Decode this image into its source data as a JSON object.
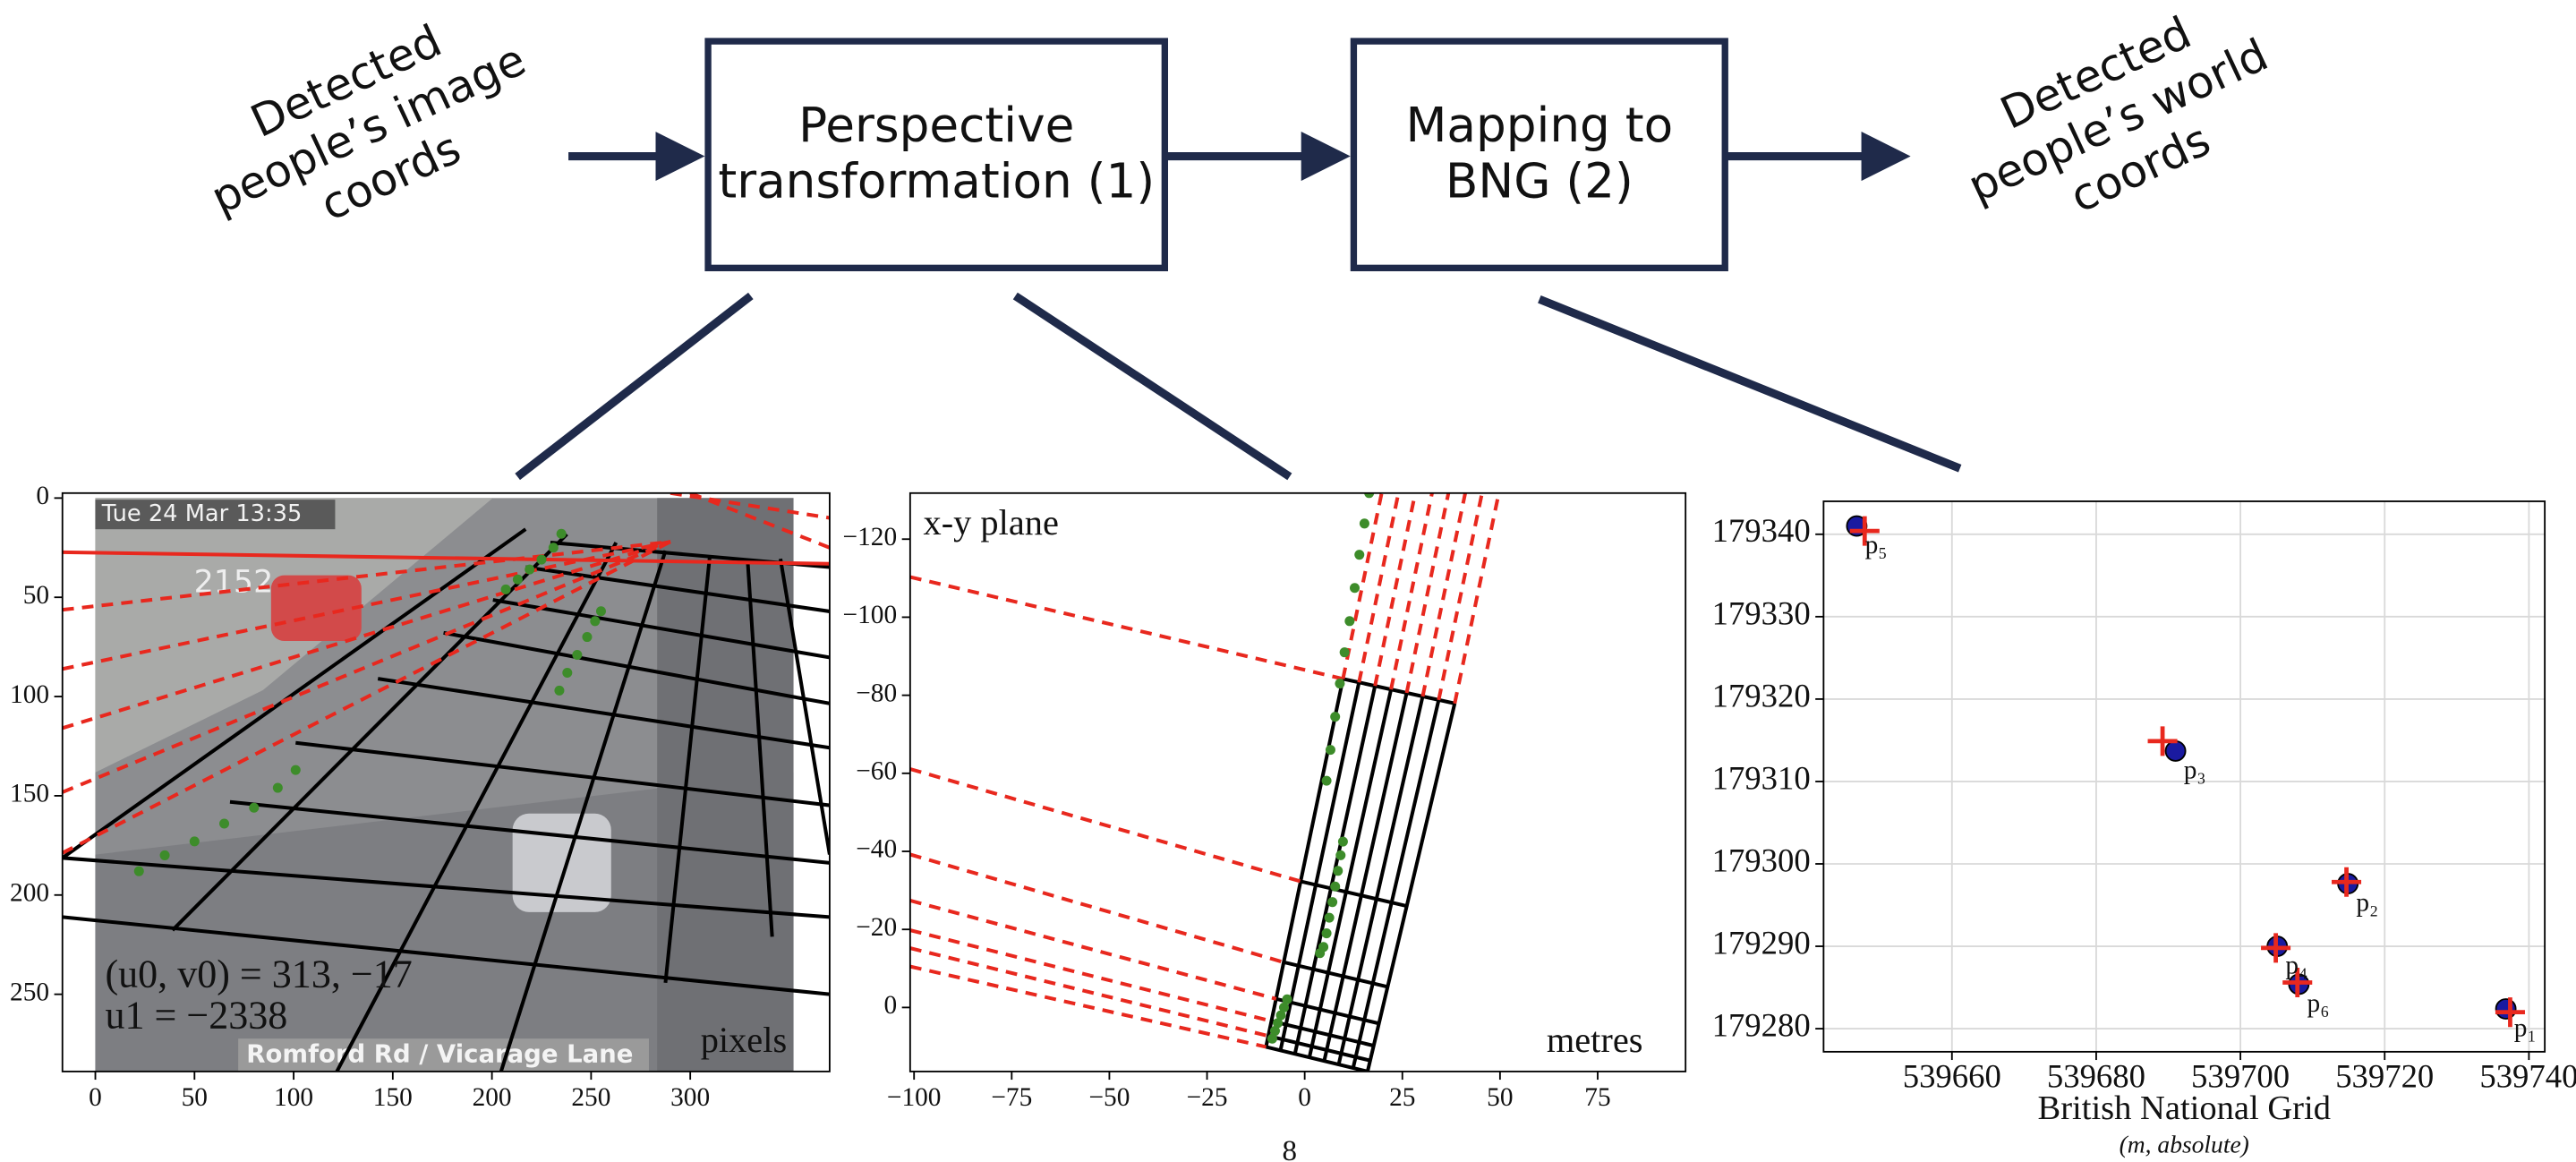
{
  "diagram": {
    "input_label": [
      "Detected",
      "people’s image",
      "coords"
    ],
    "boxes": [
      [
        "Perspective",
        "transformation (1)"
      ],
      [
        "Mapping to",
        "BNG (2)"
      ]
    ],
    "output_label": [
      "Detected",
      "people’s world",
      "coords"
    ],
    "page_number": "8"
  },
  "chart_data": [
    {
      "type": "scatter",
      "xlim": [
        -16.6,
        370.3
      ],
      "ylim": [
        288.9,
        -2.5
      ],
      "xticks": [
        0,
        50,
        100,
        150,
        200,
        250,
        300
      ],
      "yticks": [
        0,
        50,
        100,
        150,
        200,
        250
      ],
      "image_texts": [
        "Tue 24 Mar 13:35",
        "2152",
        "Romford Rd / Vicarage Lane"
      ],
      "annotations": [
        "(u0, v0) = 313, −17",
        "u1 = −2338"
      ],
      "corner_label": "pixels",
      "lines": [
        {
          "color": "#000000",
          "style": "solid",
          "x": [
            -16.6,
            217
          ],
          "y": [
            181.3,
            15.7
          ]
        },
        {
          "color": "#000000",
          "style": "solid",
          "x": [
            38.9,
            237.8
          ],
          "y": [
            217.7,
            18.2
          ]
        },
        {
          "color": "#000000",
          "style": "solid",
          "x": [
            121.8,
            262.6
          ],
          "y": [
            288.9,
            22.4
          ]
        },
        {
          "color": "#000000",
          "style": "solid",
          "x": [
            204.6,
            287.5
          ],
          "y": [
            288.9,
            26.5
          ]
        },
        {
          "color": "#000000",
          "style": "solid",
          "x": [
            287.5,
            309.9
          ],
          "y": [
            244.2,
            29
          ]
        },
        {
          "color": "#000000",
          "style": "solid",
          "x": [
            341.3,
            328.9
          ],
          "y": [
            221,
            30.6
          ]
        },
        {
          "color": "#000000",
          "style": "solid",
          "x": [
            370.3,
            345.5
          ],
          "y": [
            179.6,
            30.6
          ]
        },
        {
          "color": "#000000",
          "style": "solid",
          "x": [
            -16.6,
            370.3
          ],
          "y": [
            211.1,
            250
          ]
        },
        {
          "color": "#000000",
          "style": "solid",
          "x": [
            -16.6,
            370.3
          ],
          "y": [
            181.3,
            211.1
          ]
        },
        {
          "color": "#000000",
          "style": "solid",
          "x": [
            67.9,
            370.3
          ],
          "y": [
            153.1,
            183.8
          ]
        },
        {
          "color": "#000000",
          "style": "solid",
          "x": [
            101,
            370.3
          ],
          "y": [
            123.3,
            154.8
          ]
        },
        {
          "color": "#000000",
          "style": "solid",
          "x": [
            142.5,
            370.3
          ],
          "y": [
            91,
            125.8
          ]
        },
        {
          "color": "#000000",
          "style": "solid",
          "x": [
            175.6,
            370.3
          ],
          "y": [
            67.9,
            103.5
          ]
        },
        {
          "color": "#000000",
          "style": "solid",
          "x": [
            200.5,
            370.3
          ],
          "y": [
            51.3,
            80.3
          ]
        },
        {
          "color": "#000000",
          "style": "solid",
          "x": [
            217,
            370.3
          ],
          "y": [
            34.8,
            57.1
          ]
        },
        {
          "color": "#000000",
          "style": "solid",
          "x": [
            229.5,
            370.3
          ],
          "y": [
            22.4,
            34.8
          ]
        },
        {
          "color": "#e8281e",
          "style": "solid",
          "x": [
            -16.6,
            370.3
          ],
          "y": [
            27.3,
            33.1
          ]
        },
        {
          "color": "#e8281e",
          "style": "dashed",
          "x": [
            -16.6,
            290
          ],
          "y": [
            56.3,
            22
          ]
        },
        {
          "color": "#e8281e",
          "style": "dashed",
          "x": [
            -16.6,
            290
          ],
          "y": [
            86.1,
            22
          ]
        },
        {
          "color": "#e8281e",
          "style": "dashed",
          "x": [
            -16.6,
            290
          ],
          "y": [
            115.9,
            22
          ]
        },
        {
          "color": "#e8281e",
          "style": "dashed",
          "x": [
            -16.6,
            290
          ],
          "y": [
            148.2,
            22
          ]
        },
        {
          "color": "#e8281e",
          "style": "dashed",
          "x": [
            -16.6,
            290
          ],
          "y": [
            178.8,
            22
          ]
        },
        {
          "color": "#e8281e",
          "style": "dashed",
          "x": [
            290,
            370.3
          ],
          "y": [
            -2.5,
            10
          ]
        },
        {
          "color": "#e8281e",
          "style": "dashed",
          "x": [
            300,
            370.3
          ],
          "y": [
            -2.5,
            25
          ]
        }
      ],
      "series": [
        {
          "color": "#3d8c2a",
          "marker": "dot",
          "x": [
            22,
            35,
            50,
            65,
            80,
            92,
            101
          ],
          "y": [
            188,
            180,
            173,
            164,
            156,
            146,
            137
          ]
        },
        {
          "color": "#3d8c2a",
          "marker": "dot",
          "x": [
            207,
            213,
            219,
            225,
            231,
            235
          ],
          "y": [
            46,
            41,
            36,
            31,
            25,
            18
          ]
        },
        {
          "color": "#3d8c2a",
          "marker": "dot",
          "x": [
            234,
            238,
            243,
            248,
            252,
            255
          ],
          "y": [
            97,
            88,
            79,
            70,
            62,
            57
          ]
        }
      ]
    },
    {
      "type": "scatter",
      "xlim": [
        -101,
        97.5
      ],
      "ylim": [
        16.4,
        -131.8
      ],
      "xticks": [
        {
          "value": -100,
          "label": "−100"
        },
        {
          "value": -75,
          "label": "−75"
        },
        {
          "value": -50,
          "label": "−50"
        },
        {
          "value": -25,
          "label": "−25"
        },
        0,
        25,
        50,
        75
      ],
      "yticks": [
        {
          "value": -120,
          "label": "−120"
        },
        {
          "value": -100,
          "label": "−100"
        },
        {
          "value": -80,
          "label": "−80"
        },
        {
          "value": -60,
          "label": "−60"
        },
        {
          "value": -40,
          "label": "−40"
        },
        {
          "value": -20,
          "label": "−20"
        },
        0
      ],
      "corner_title": "x-y plane",
      "corner_label": "metres",
      "lines": [
        {
          "color": "#000000",
          "style": "solid",
          "x": [
            9.8,
            38.4
          ],
          "y": [
            -84.2,
            -77.9
          ]
        },
        {
          "color": "#000000",
          "style": "solid",
          "x": [
            -1.0,
            26.1
          ],
          "y": [
            -32.3,
            -26.0
          ]
        },
        {
          "color": "#000000",
          "style": "solid",
          "x": [
            -5.4,
            21.2
          ],
          "y": [
            -11.6,
            -5.3
          ]
        },
        {
          "color": "#000000",
          "style": "solid",
          "x": [
            -7.3,
            19.0
          ],
          "y": [
            -2.2,
            4.1
          ]
        },
        {
          "color": "#000000",
          "style": "solid",
          "x": [
            -8.5,
            17.7
          ],
          "y": [
            3.5,
            9.8
          ]
        },
        {
          "color": "#000000",
          "style": "solid",
          "x": [
            -9.3,
            16.8
          ],
          "y": [
            7.3,
            13.6
          ]
        },
        {
          "color": "#000000",
          "style": "solid",
          "x": [
            -9.9,
            16.1
          ],
          "y": [
            10.1,
            16.4
          ]
        },
        {
          "color": "#000000",
          "style": "solid",
          "x": [
            9.8,
            -9.9
          ],
          "y": [
            -84.2,
            10.1
          ]
        },
        {
          "color": "#000000",
          "style": "solid",
          "x": [
            13.9,
            -6.2
          ],
          "y": [
            -83.3,
            11.0
          ]
        },
        {
          "color": "#000000",
          "style": "solid",
          "x": [
            18.0,
            -2.5
          ],
          "y": [
            -82.4,
            11.9
          ]
        },
        {
          "color": "#000000",
          "style": "solid",
          "x": [
            22.1,
            1.2
          ],
          "y": [
            -81.5,
            12.8
          ]
        },
        {
          "color": "#000000",
          "style": "solid",
          "x": [
            26.1,
            5.0
          ],
          "y": [
            -80.6,
            13.7
          ]
        },
        {
          "color": "#000000",
          "style": "solid",
          "x": [
            30.2,
            8.7
          ],
          "y": [
            -79.7,
            14.6
          ]
        },
        {
          "color": "#000000",
          "style": "solid",
          "x": [
            34.3,
            12.4
          ],
          "y": [
            -78.8,
            15.5
          ]
        },
        {
          "color": "#000000",
          "style": "solid",
          "x": [
            38.4,
            16.1
          ],
          "y": [
            -77.9,
            16.4
          ]
        },
        {
          "color": "#e8281e",
          "style": "dashed",
          "x": [
            -101,
            9.8
          ],
          "y": [
            -110.3,
            -84.2
          ]
        },
        {
          "color": "#e8281e",
          "style": "dashed",
          "x": [
            -101,
            -1.0
          ],
          "y": [
            -61.1,
            -32.3
          ]
        },
        {
          "color": "#e8281e",
          "style": "dashed",
          "x": [
            -101,
            -5.4
          ],
          "y": [
            -39.2,
            -11.6
          ]
        },
        {
          "color": "#e8281e",
          "style": "dashed",
          "x": [
            -101,
            -7.3
          ],
          "y": [
            -27.4,
            -2.2
          ]
        },
        {
          "color": "#e8281e",
          "style": "dashed",
          "x": [
            -101,
            -8.5
          ],
          "y": [
            -19.8,
            3.5
          ]
        },
        {
          "color": "#e8281e",
          "style": "dashed",
          "x": [
            -101,
            -9.3
          ],
          "y": [
            -15.2,
            7.3
          ]
        },
        {
          "color": "#e8281e",
          "style": "dashed",
          "x": [
            -101,
            -9.9
          ],
          "y": [
            -10.5,
            10.1
          ]
        },
        {
          "color": "#e8281e",
          "style": "dashed",
          "x": [
            9.8,
            19.7
          ],
          "y": [
            -84.2,
            -131.8
          ]
        },
        {
          "color": "#e8281e",
          "style": "dashed",
          "x": [
            13.9,
            24.0
          ],
          "y": [
            -83.3,
            -131.8
          ]
        },
        {
          "color": "#e8281e",
          "style": "dashed",
          "x": [
            18.0,
            28.3
          ],
          "y": [
            -82.4,
            -131.8
          ]
        },
        {
          "color": "#e8281e",
          "style": "dashed",
          "x": [
            22.1,
            32.6
          ],
          "y": [
            -81.5,
            -131.8
          ]
        },
        {
          "color": "#e8281e",
          "style": "dashed",
          "x": [
            26.1,
            36.8
          ],
          "y": [
            -80.6,
            -131.8
          ]
        },
        {
          "color": "#e8281e",
          "style": "dashed",
          "x": [
            30.2,
            41.1
          ],
          "y": [
            -79.7,
            -131.8
          ]
        },
        {
          "color": "#e8281e",
          "style": "dashed",
          "x": [
            34.3,
            45.4
          ],
          "y": [
            -78.8,
            -131.8
          ]
        },
        {
          "color": "#e8281e",
          "style": "dashed",
          "x": [
            38.4,
            49.7
          ],
          "y": [
            -77.9,
            -131.8
          ]
        }
      ],
      "series": [
        {
          "color": "#3d8c2a",
          "marker": "dot",
          "x": [
            16.5,
            15.3,
            14,
            12.8,
            11.5,
            10.2,
            9,
            7.8,
            6.6,
            5.6
          ],
          "y": [
            -131.8,
            -124,
            -116,
            -107.5,
            -99,
            -91,
            -83,
            -74.5,
            -66,
            -58.1
          ]
        },
        {
          "color": "#3d8c2a",
          "marker": "dot",
          "x": [
            9.8,
            9.2,
            8.5,
            7.8,
            7.1,
            6.3,
            5.6,
            4.8,
            3.9
          ],
          "y": [
            -42.5,
            -39,
            -35,
            -31,
            -27,
            -23,
            -19,
            -15.5,
            -13.9
          ]
        },
        {
          "color": "#3d8c2a",
          "marker": "dot",
          "x": [
            -4.5,
            -5.3,
            -6.1,
            -6.9,
            -7.6,
            -8.3
          ],
          "y": [
            -2.1,
            0,
            2,
            4,
            6,
            8
          ]
        }
      ]
    },
    {
      "type": "scatter",
      "xlim": [
        539642.2,
        539742.2
      ],
      "ylim": [
        179277.2,
        179344
      ],
      "xticks": [
        539660,
        539680,
        539700,
        539720,
        539740
      ],
      "yticks": [
        179280,
        179290,
        179300,
        179310,
        179320,
        179330,
        179340
      ],
      "grid": true,
      "x_label": "British National Grid",
      "x_sublabel": "(m, absolute)",
      "lines": [],
      "series": [
        {
          "color": "#1a1aa0",
          "marker": "circle",
          "x": [
            539646.8,
            539691,
            539714.9,
            539705.1,
            539708.1,
            539736.8
          ],
          "y": [
            179341,
            179313.7,
            179297.6,
            179290,
            179285.4,
            179282.4
          ]
        },
        {
          "color": "#e8281e",
          "marker": "plus",
          "x": [
            539647.9,
            539689.2,
            539714.7,
            539704.9,
            539707.9,
            539737.4
          ],
          "y": [
            179340.4,
            179314.9,
            179297.8,
            179289.8,
            179285.6,
            179282
          ]
        }
      ],
      "point_labels": [
        "p₅",
        "p₃",
        "p₂",
        "p₄",
        "p₆",
        "p₁"
      ]
    }
  ]
}
